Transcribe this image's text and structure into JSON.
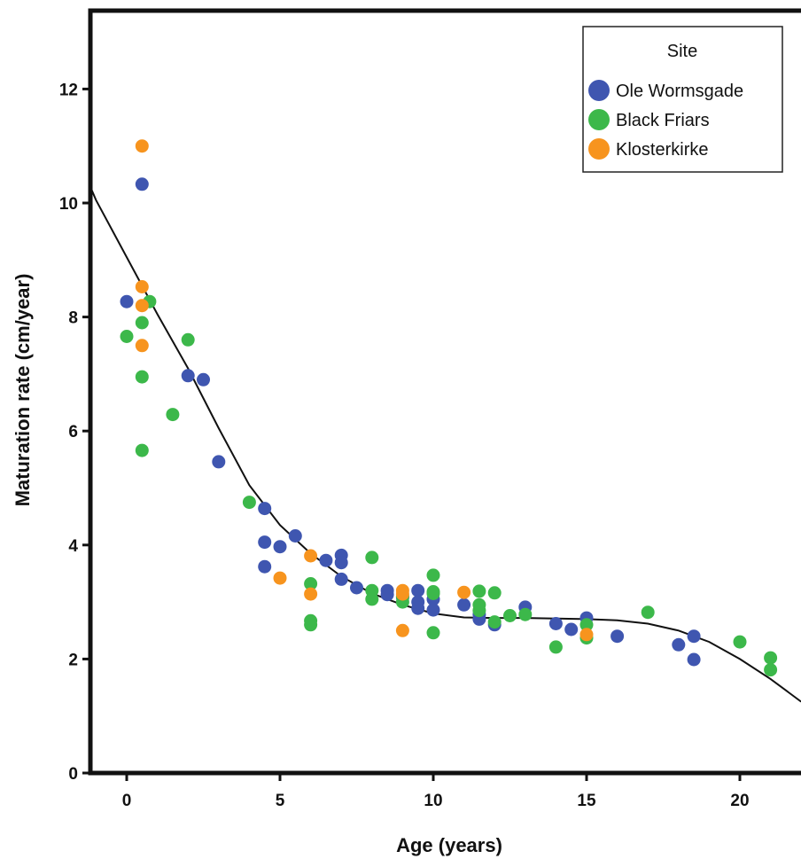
{
  "chart_data": {
    "type": "scatter",
    "xlabel": "Age (years)",
    "ylabel": "Maturation rate (cm/year)",
    "xlim": [
      -1.2,
      22
    ],
    "ylim": [
      0,
      13.5
    ],
    "xticks": [
      0,
      5,
      10,
      15,
      20
    ],
    "yticks": [
      0,
      2,
      4,
      6,
      8,
      10,
      12
    ],
    "grid": false,
    "legend": {
      "title": "Site",
      "placement": "top-right",
      "entries": [
        "Ole Wormsgade",
        "Black Friars",
        "Klosterkirke"
      ]
    },
    "series": [
      {
        "name": "Ole Wormsgade",
        "color": "#3f56b0",
        "points": [
          [
            0,
            8.27
          ],
          [
            0.5,
            10.33
          ],
          [
            2,
            6.97
          ],
          [
            2.5,
            6.9
          ],
          [
            3,
            5.46
          ],
          [
            4.5,
            4.64
          ],
          [
            4.5,
            4.05
          ],
          [
            4.5,
            3.62
          ],
          [
            5,
            3.97
          ],
          [
            5.5,
            4.16
          ],
          [
            6.5,
            3.73
          ],
          [
            7,
            3.82
          ],
          [
            7,
            3.69
          ],
          [
            7,
            3.4
          ],
          [
            7.5,
            3.25
          ],
          [
            8.5,
            3.2
          ],
          [
            8.5,
            3.13
          ],
          [
            9,
            3.08
          ],
          [
            9.5,
            3.2
          ],
          [
            9.5,
            3.0
          ],
          [
            9.5,
            2.89
          ],
          [
            10,
            3.05
          ],
          [
            10,
            2.86
          ],
          [
            11,
            2.95
          ],
          [
            11.5,
            2.78
          ],
          [
            11.5,
            2.7
          ],
          [
            12,
            2.6
          ],
          [
            13,
            2.91
          ],
          [
            14,
            2.62
          ],
          [
            14.5,
            2.52
          ],
          [
            15,
            2.72
          ],
          [
            16,
            2.4
          ],
          [
            18,
            2.25
          ],
          [
            18.5,
            2.4
          ],
          [
            18.5,
            1.99
          ]
        ]
      },
      {
        "name": "Black Friars",
        "color": "#3cb84a",
        "points": [
          [
            0,
            7.66
          ],
          [
            0.5,
            7.9
          ],
          [
            0.5,
            6.95
          ],
          [
            0.5,
            5.66
          ],
          [
            0.75,
            8.27
          ],
          [
            1.5,
            6.29
          ],
          [
            2,
            7.6
          ],
          [
            4,
            4.75
          ],
          [
            6,
            3.32
          ],
          [
            6,
            2.67
          ],
          [
            6,
            2.6
          ],
          [
            8,
            3.78
          ],
          [
            8,
            3.2
          ],
          [
            8,
            3.05
          ],
          [
            9,
            3.1
          ],
          [
            9,
            3.0
          ],
          [
            10,
            3.47
          ],
          [
            10,
            3.18
          ],
          [
            10,
            3.15
          ],
          [
            10,
            2.46
          ],
          [
            11.5,
            3.19
          ],
          [
            11.5,
            2.95
          ],
          [
            11.5,
            2.85
          ],
          [
            12,
            3.16
          ],
          [
            12,
            2.65
          ],
          [
            12.5,
            2.76
          ],
          [
            13,
            2.78
          ],
          [
            14,
            2.21
          ],
          [
            15,
            2.6
          ],
          [
            15,
            2.37
          ],
          [
            17,
            2.82
          ],
          [
            20,
            2.3
          ],
          [
            21,
            2.02
          ],
          [
            21,
            1.81
          ]
        ]
      },
      {
        "name": "Klosterkirke",
        "color": "#f7941e",
        "points": [
          [
            0.5,
            11.0
          ],
          [
            0.5,
            8.53
          ],
          [
            0.5,
            8.2
          ],
          [
            0.5,
            7.5
          ],
          [
            5,
            3.42
          ],
          [
            6,
            3.81
          ],
          [
            6,
            3.14
          ],
          [
            9,
            3.2
          ],
          [
            9,
            3.14
          ],
          [
            9,
            2.5
          ],
          [
            11,
            3.17
          ],
          [
            15,
            2.43
          ]
        ]
      }
    ],
    "fit_line": {
      "type": "cubic",
      "color": "#111111",
      "x": [
        -1.2,
        -1,
        0,
        1,
        2,
        3,
        4,
        5,
        6,
        7,
        8,
        9,
        10,
        11,
        12,
        13,
        14,
        15,
        16,
        17,
        18,
        19,
        20,
        21,
        22
      ],
      "y": [
        10.3,
        10.05,
        9.05,
        8.05,
        7.1,
        6.05,
        5.05,
        4.35,
        3.85,
        3.45,
        3.15,
        2.95,
        2.8,
        2.73,
        2.72,
        2.72,
        2.71,
        2.7,
        2.68,
        2.62,
        2.5,
        2.3,
        2.0,
        1.65,
        1.25
      ]
    }
  }
}
